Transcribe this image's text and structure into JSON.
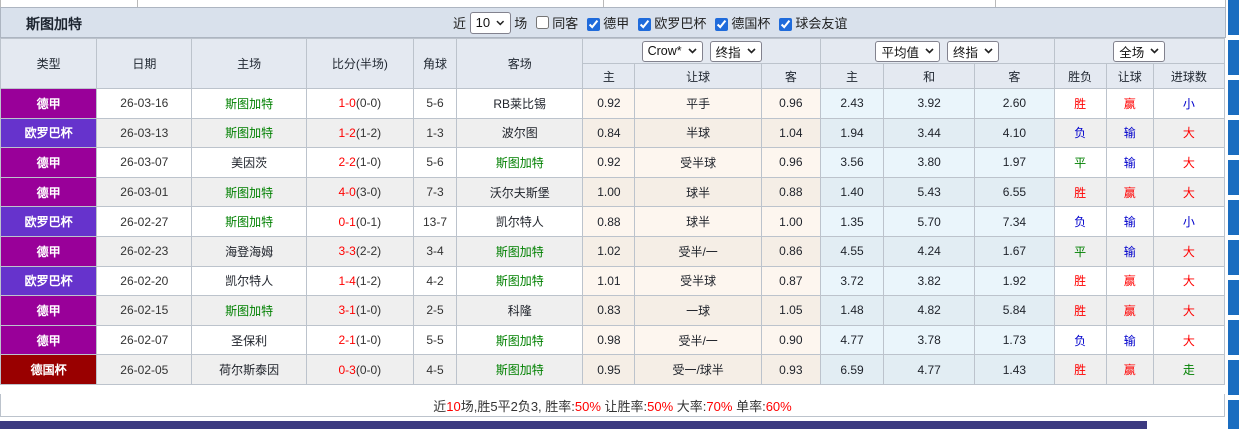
{
  "title": "斯图加特",
  "filter_bar": {
    "near_label": "近",
    "matches_select": "10",
    "matches_label": "场",
    "same_away_label": "同客",
    "same_away_checked": false,
    "competitions": [
      {
        "label": "德甲",
        "checked": true
      },
      {
        "label": "欧罗巴杯",
        "checked": true
      },
      {
        "label": "德国杯",
        "checked": true
      },
      {
        "label": "球会友谊",
        "checked": true
      }
    ]
  },
  "selectors": {
    "ah_source": "Crow*",
    "ah_time": "终指",
    "eu_source": "平均值",
    "eu_time": "终指",
    "scope": "全场"
  },
  "columns": {
    "main": [
      "类型",
      "日期",
      "主场",
      "比分(半场)",
      "角球",
      "客场"
    ],
    "sub": [
      "主",
      "让球",
      "客",
      "主",
      "和",
      "客",
      "胜负",
      "让球",
      "进球数"
    ]
  },
  "rows": [
    {
      "type": "德甲",
      "date": "26-03-16",
      "home": "斯图加特",
      "score": "1-0",
      "half": "(0-0)",
      "corner": "5-6",
      "away": "RB莱比锡",
      "ah_home": "0.92",
      "ah_line": "平手",
      "ah_away": "0.96",
      "eu_home": "2.43",
      "eu_draw": "3.92",
      "eu_away": "2.60",
      "result": "胜",
      "ah_result": "赢",
      "goals": "小"
    },
    {
      "type": "欧罗巴杯",
      "date": "26-03-13",
      "home": "斯图加特",
      "score": "1-2",
      "half": "(1-2)",
      "corner": "1-3",
      "away": "波尔图",
      "ah_home": "0.84",
      "ah_line": "半球",
      "ah_away": "1.04",
      "eu_home": "1.94",
      "eu_draw": "3.44",
      "eu_away": "4.10",
      "result": "负",
      "ah_result": "输",
      "goals": "大"
    },
    {
      "type": "德甲",
      "date": "26-03-07",
      "home": "美因茨",
      "score": "2-2",
      "half": "(1-0)",
      "corner": "5-6",
      "away": "斯图加特",
      "ah_home": "0.92",
      "ah_line": "受半球",
      "ah_away": "0.96",
      "eu_home": "3.56",
      "eu_draw": "3.80",
      "eu_away": "1.97",
      "result": "平",
      "ah_result": "输",
      "goals": "大"
    },
    {
      "type": "德甲",
      "date": "26-03-01",
      "home": "斯图加特",
      "score": "4-0",
      "half": "(3-0)",
      "corner": "7-3",
      "away": "沃尔夫斯堡",
      "ah_home": "1.00",
      "ah_line": "球半",
      "ah_away": "0.88",
      "eu_home": "1.40",
      "eu_draw": "5.43",
      "eu_away": "6.55",
      "result": "胜",
      "ah_result": "赢",
      "goals": "大"
    },
    {
      "type": "欧罗巴杯",
      "date": "26-02-27",
      "home": "斯图加特",
      "score": "0-1",
      "half": "(0-1)",
      "corner": "13-7",
      "away": "凯尔特人",
      "ah_home": "0.88",
      "ah_line": "球半",
      "ah_away": "1.00",
      "eu_home": "1.35",
      "eu_draw": "5.70",
      "eu_away": "7.34",
      "result": "负",
      "ah_result": "输",
      "goals": "小"
    },
    {
      "type": "德甲",
      "date": "26-02-23",
      "home": "海登海姆",
      "score": "3-3",
      "half": "(2-2)",
      "corner": "3-4",
      "away": "斯图加特",
      "ah_home": "1.02",
      "ah_line": "受半/一",
      "ah_away": "0.86",
      "eu_home": "4.55",
      "eu_draw": "4.24",
      "eu_away": "1.67",
      "result": "平",
      "ah_result": "输",
      "goals": "大"
    },
    {
      "type": "欧罗巴杯",
      "date": "26-02-20",
      "home": "凯尔特人",
      "score": "1-4",
      "half": "(1-2)",
      "corner": "4-2",
      "away": "斯图加特",
      "ah_home": "1.01",
      "ah_line": "受半球",
      "ah_away": "0.87",
      "eu_home": "3.72",
      "eu_draw": "3.82",
      "eu_away": "1.92",
      "result": "胜",
      "ah_result": "赢",
      "goals": "大"
    },
    {
      "type": "德甲",
      "date": "26-02-15",
      "home": "斯图加特",
      "score": "3-1",
      "half": "(1-0)",
      "corner": "2-5",
      "away": "科隆",
      "ah_home": "0.83",
      "ah_line": "一球",
      "ah_away": "1.05",
      "eu_home": "1.48",
      "eu_draw": "4.82",
      "eu_away": "5.84",
      "result": "胜",
      "ah_result": "赢",
      "goals": "大"
    },
    {
      "type": "德甲",
      "date": "26-02-07",
      "home": "圣保利",
      "score": "2-1",
      "half": "(1-0)",
      "corner": "5-5",
      "away": "斯图加特",
      "ah_home": "0.98",
      "ah_line": "受半/一",
      "ah_away": "0.90",
      "eu_home": "4.77",
      "eu_draw": "3.78",
      "eu_away": "1.73",
      "result": "负",
      "ah_result": "输",
      "goals": "大"
    },
    {
      "type": "德国杯",
      "date": "26-02-05",
      "home": "荷尔斯泰因",
      "score": "0-3",
      "half": "(0-0)",
      "corner": "4-5",
      "away": "斯图加特",
      "ah_home": "0.95",
      "ah_line": "受一/球半",
      "ah_away": "0.93",
      "eu_home": "6.59",
      "eu_draw": "4.77",
      "eu_away": "1.43",
      "result": "胜",
      "ah_result": "赢",
      "goals": "走"
    }
  ],
  "summary_segments": [
    {
      "text": "近",
      "red": false
    },
    {
      "text": "10",
      "red": true
    },
    {
      "text": "场,胜5平2负3, 胜率:",
      "red": false
    },
    {
      "text": "50%",
      "red": true
    },
    {
      "text": " 让胜率:",
      "red": false
    },
    {
      "text": "50%",
      "red": true
    },
    {
      "text": " 大率:",
      "red": false
    },
    {
      "text": "70%",
      "red": true
    },
    {
      "text": " 单率:",
      "red": false
    },
    {
      "text": "60%",
      "red": true
    }
  ],
  "colors": {
    "type_badges": {
      "德甲": "#990099",
      "欧罗巴杯": "#6633cc",
      "德国杯": "#990000"
    },
    "outcome": {
      "胜": "#ff0000",
      "平": "#008000",
      "负": "#0000cc",
      "赢": "#ff0000",
      "输": "#0000cc",
      "大": "#ff0000",
      "小": "#0000cc",
      "走": "#008000"
    },
    "team_highlight": "#008000",
    "score": "#ff0000",
    "accent_strip": "#1a6dc0",
    "bottom_bar": "#3c3a80"
  }
}
